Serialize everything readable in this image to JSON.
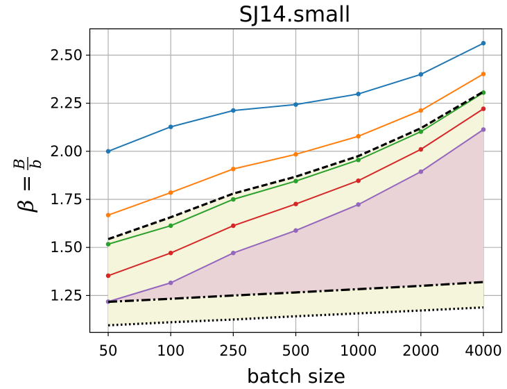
{
  "chart_data": {
    "type": "line",
    "title": "SJ14.small",
    "xlabel": "batch size",
    "ylabel": "β = B/b",
    "ylabel_parts": {
      "beta": "β",
      "eq": "=",
      "num": "B",
      "den": "b"
    },
    "categories": [
      "50",
      "100",
      "250",
      "500",
      "1000",
      "2000",
      "4000"
    ],
    "ylim": [
      1.06,
      2.635
    ],
    "yticks": [
      1.25,
      1.5,
      1.75,
      2.0,
      2.25,
      2.5
    ],
    "ytick_labels": [
      "1.25",
      "1.50",
      "1.75",
      "2.00",
      "2.25",
      "2.50"
    ],
    "grid": true,
    "series": [
      {
        "name": "blue",
        "color": "#1f77b4",
        "style": "solid-marker",
        "values": [
          2.0,
          2.127,
          2.212,
          2.243,
          2.298,
          2.4,
          2.562
        ]
      },
      {
        "name": "orange",
        "color": "#ff7f0e",
        "style": "solid-marker",
        "values": [
          1.668,
          1.785,
          1.908,
          1.984,
          2.078,
          2.212,
          2.402
        ]
      },
      {
        "name": "green",
        "color": "#2ca02c",
        "style": "solid-marker",
        "values": [
          1.517,
          1.613,
          1.75,
          1.845,
          1.955,
          2.102,
          2.305
        ]
      },
      {
        "name": "red",
        "color": "#d62728",
        "style": "solid-marker",
        "values": [
          1.353,
          1.471,
          1.613,
          1.726,
          1.847,
          2.01,
          2.221
        ]
      },
      {
        "name": "purple",
        "color": "#9467bd",
        "style": "solid-marker",
        "values": [
          1.218,
          1.316,
          1.471,
          1.588,
          1.723,
          1.894,
          2.113
        ]
      },
      {
        "name": "black-dashed",
        "color": "#000000",
        "style": "dashed",
        "values": [
          1.543,
          1.657,
          1.78,
          1.868,
          1.975,
          2.12,
          2.31
        ]
      },
      {
        "name": "black-dashdot",
        "color": "#000000",
        "style": "dashdot",
        "values": [
          1.217,
          1.233,
          1.25,
          1.266,
          1.283,
          1.3,
          1.32
        ]
      },
      {
        "name": "black-dotted",
        "color": "#000000",
        "style": "dotted",
        "values": [
          1.095,
          1.111,
          1.125,
          1.142,
          1.157,
          1.172,
          1.188
        ]
      }
    ],
    "shaded_regions": [
      {
        "name": "yellow-band",
        "color": "#f5f5dc",
        "upper": "black-dashed",
        "lower": "black-dotted"
      },
      {
        "name": "pink-band",
        "color": "#ead3d7",
        "upper": "purple",
        "lower": "black-dashdot"
      }
    ]
  }
}
